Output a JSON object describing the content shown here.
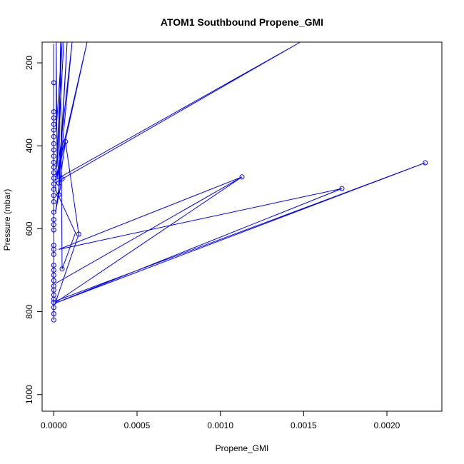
{
  "chart_data": {
    "type": "line",
    "title": "ATOM1 Southbound Propene_GMI",
    "xlabel": "Propene_GMI",
    "ylabel": "Pressure (mbar)",
    "xlim": [
      -7e-05,
      0.00233
    ],
    "ylim": [
      1040,
      150
    ],
    "y_reversed": true,
    "grid": false,
    "color": "#0000ff",
    "x_ticks": [
      0,
      0.0005,
      0.001,
      0.0015,
      0.002
    ],
    "x_tick_labels": [
      "0.0000",
      "0.0005",
      "0.0010",
      "0.0015",
      "0.0020"
    ],
    "y_ticks": [
      200,
      400,
      600,
      800,
      1000
    ],
    "y_tick_labels": [
      "200",
      "400",
      "600",
      "800",
      "1000"
    ],
    "series": [
      {
        "points": [
          [
            0.0,
            820
          ],
          [
            0.0,
            805
          ],
          [
            0.0,
            790
          ],
          [
            0.0,
            778
          ],
          [
            0.0,
            770
          ],
          [
            0.0,
            760
          ],
          [
            0.0,
            748
          ],
          [
            0.0,
            738
          ],
          [
            0.0,
            725
          ],
          [
            0.0,
            712
          ],
          [
            0.0,
            700
          ],
          [
            0.0,
            688
          ],
          [
            0.0,
            675
          ],
          [
            0.0,
            662
          ],
          [
            0.0,
            650
          ],
          [
            0.0,
            640
          ],
          [
            0.0,
            628
          ],
          [
            0.0,
            615
          ],
          [
            0.0,
            603
          ],
          [
            0.0,
            590
          ],
          [
            0.0,
            578
          ],
          [
            0.0,
            560
          ],
          [
            0.0,
            548
          ],
          [
            0.0,
            535
          ],
          [
            0.0,
            520
          ],
          [
            0.0,
            505
          ],
          [
            0.0,
            492
          ],
          [
            0.0,
            478
          ],
          [
            0.0,
            465
          ],
          [
            0.0,
            452
          ],
          [
            0.0,
            440
          ],
          [
            0.0,
            425
          ],
          [
            0.0,
            410
          ],
          [
            0.0,
            395
          ],
          [
            0.0,
            378
          ],
          [
            0.0,
            362
          ],
          [
            0.0,
            348
          ],
          [
            0.0,
            333
          ],
          [
            0.0,
            318
          ],
          [
            0.0,
            300
          ],
          [
            0.0,
            280
          ],
          [
            0.0,
            265
          ],
          [
            0.0,
            248
          ],
          [
            0.0,
            230
          ],
          [
            0.0,
            210
          ],
          [
            0.0,
            190
          ],
          [
            0.0,
            170
          ],
          [
            0.0,
            155
          ]
        ]
      },
      {
        "points": [
          [
            5e-06,
            775
          ],
          [
            0.00223,
            441
          ],
          [
            5e-06,
            780
          ],
          [
            0.00173,
            503
          ],
          [
            3e-05,
            650
          ],
          [
            0.00113,
            475
          ],
          [
            1e-05,
            732
          ],
          [
            0.00113,
            475
          ],
          [
            1e-05,
            778
          ],
          [
            0.00015,
            613
          ],
          [
            7e-05,
            390
          ],
          [
            1e-05,
            560
          ],
          [
            5e-05,
            480
          ],
          [
            0.00148,
            150
          ],
          [
            1e-05,
            482
          ],
          [
            0.0002,
            150
          ],
          [
            2e-05,
            478
          ],
          [
            0.00011,
            150
          ],
          [
            3e-05,
            490
          ],
          [
            8e-05,
            150
          ],
          [
            3e-05,
            518
          ],
          [
            4e-05,
            150
          ],
          [
            5e-05,
            697
          ],
          [
            0.00013,
            610
          ],
          [
            1e-05,
            505
          ],
          [
            5e-05,
            150
          ],
          [
            1.5e-05,
            360
          ],
          [
            1.5e-05,
            150
          ],
          [
            2e-05,
            450
          ],
          [
            6e-05,
            150
          ]
        ]
      }
    ],
    "markers": [
      [
        0.00223,
        441
      ],
      [
        0.00173,
        503
      ],
      [
        0.00113,
        475
      ],
      [
        0.00015,
        613
      ],
      [
        7e-05,
        390
      ],
      [
        5e-05,
        480
      ],
      [
        5e-05,
        697
      ],
      [
        3e-05,
        490
      ],
      [
        3e-05,
        518
      ],
      [
        0.0,
        820
      ],
      [
        0.0,
        805
      ],
      [
        0.0,
        790
      ],
      [
        0.0,
        778
      ],
      [
        0.0,
        770
      ],
      [
        0.0,
        760
      ],
      [
        0.0,
        748
      ],
      [
        0.0,
        738
      ],
      [
        0.0,
        725
      ],
      [
        0.0,
        712
      ],
      [
        0.0,
        700
      ],
      [
        0.0,
        688
      ],
      [
        0.0,
        662
      ],
      [
        0.0,
        650
      ],
      [
        0.0,
        640
      ],
      [
        0.0,
        603
      ],
      [
        0.0,
        590
      ],
      [
        0.0,
        578
      ],
      [
        0.0,
        560
      ],
      [
        0.0,
        535
      ],
      [
        0.0,
        520
      ],
      [
        0.0,
        505
      ],
      [
        0.0,
        492
      ],
      [
        0.0,
        478
      ],
      [
        0.0,
        465
      ],
      [
        0.0,
        452
      ],
      [
        0.0,
        440
      ],
      [
        0.0,
        425
      ],
      [
        0.0,
        410
      ],
      [
        0.0,
        395
      ],
      [
        0.0,
        378
      ],
      [
        0.0,
        362
      ],
      [
        0.0,
        348
      ],
      [
        0.0,
        333
      ],
      [
        0.0,
        318
      ],
      [
        0.0,
        248
      ]
    ]
  }
}
